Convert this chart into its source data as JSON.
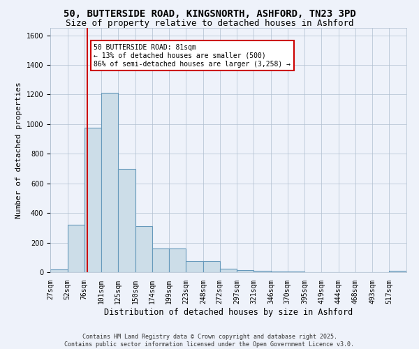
{
  "title1": "50, BUTTERSIDE ROAD, KINGSNORTH, ASHFORD, TN23 3PD",
  "title2": "Size of property relative to detached houses in Ashford",
  "xlabel": "Distribution of detached houses by size in Ashford",
  "ylabel": "Number of detached properties",
  "categories": [
    "27sqm",
    "52sqm",
    "76sqm",
    "101sqm",
    "125sqm",
    "150sqm",
    "174sqm",
    "199sqm",
    "223sqm",
    "248sqm",
    "272sqm",
    "297sqm",
    "321sqm",
    "346sqm",
    "370sqm",
    "395sqm",
    "419sqm",
    "444sqm",
    "468sqm",
    "493sqm",
    "517sqm"
  ],
  "bin_edges": [
    27,
    52,
    76,
    101,
    125,
    150,
    174,
    199,
    223,
    248,
    272,
    297,
    321,
    346,
    370,
    395,
    419,
    444,
    468,
    493,
    517,
    542
  ],
  "bar_heights": [
    20,
    320,
    975,
    1210,
    700,
    310,
    160,
    160,
    75,
    75,
    25,
    15,
    10,
    5,
    5,
    2,
    2,
    2,
    2,
    2,
    10
  ],
  "bar_color": "#ccdde8",
  "bar_edge_color": "#6699bb",
  "property_size": 81,
  "property_line_color": "#cc0000",
  "ylim": [
    0,
    1650
  ],
  "annotation_text": "50 BUTTERSIDE ROAD: 81sqm\n← 13% of detached houses are smaller (500)\n86% of semi-detached houses are larger (3,258) →",
  "annotation_box_color": "#ffffff",
  "annotation_box_edge": "#cc0000",
  "bg_color": "#eef2fa",
  "grid_color": "#b0bfd0",
  "footer_text": "Contains HM Land Registry data © Crown copyright and database right 2025.\nContains public sector information licensed under the Open Government Licence v3.0.",
  "title_fontsize": 10,
  "subtitle_fontsize": 9,
  "tick_fontsize": 7,
  "ylabel_fontsize": 8,
  "xlabel_fontsize": 8.5,
  "annotation_fontsize": 7,
  "footer_fontsize": 6
}
